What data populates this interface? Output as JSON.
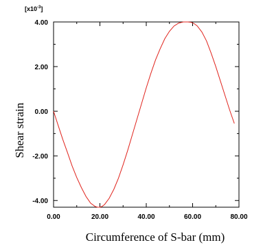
{
  "chart_data": {
    "type": "line",
    "title": "",
    "xlabel": "Circumference of S-bar (mm)",
    "ylabel": "Shear strain",
    "scale_label": "[x10",
    "scale_exponent": "-3",
    "scale_close": "]",
    "xlim": [
      0,
      80
    ],
    "ylim": [
      -4.3,
      4.0
    ],
    "x_ticks": [
      0,
      20,
      40,
      60,
      80
    ],
    "x_tick_labels": [
      "0.00",
      "20.00",
      "40.00",
      "60.00",
      "80.00"
    ],
    "y_ticks": [
      -4,
      -2,
      0,
      2,
      4
    ],
    "y_tick_labels": [
      "-4.00",
      "-2.00",
      "0.00",
      "2.00",
      "4.00"
    ],
    "grid": false,
    "legend": "none",
    "colors": {
      "line": "#e0231c",
      "axis": "#000000"
    },
    "series": [
      {
        "x": [
          0,
          2,
          4,
          6,
          8,
          10,
          12,
          14,
          16,
          18,
          19,
          20,
          21,
          22,
          24,
          26,
          28,
          30,
          32,
          34,
          36,
          38,
          40,
          42,
          44,
          46,
          48,
          50,
          52,
          54,
          56,
          58,
          59,
          60,
          61,
          62,
          64,
          66,
          68,
          70,
          72,
          74,
          76,
          78
        ],
        "y": [
          0.0,
          -0.64,
          -1.27,
          -1.85,
          -2.45,
          -2.97,
          -3.42,
          -3.82,
          -4.12,
          -4.27,
          -4.3,
          -4.3,
          -4.26,
          -4.18,
          -3.9,
          -3.5,
          -3.0,
          -2.4,
          -1.75,
          -1.05,
          -0.35,
          0.35,
          1.05,
          1.7,
          2.3,
          2.8,
          3.25,
          3.58,
          3.82,
          3.95,
          4.0,
          4.0,
          3.99,
          3.96,
          3.9,
          3.82,
          3.55,
          3.15,
          2.6,
          2.0,
          1.35,
          0.7,
          0.05,
          -0.55
        ]
      }
    ]
  }
}
